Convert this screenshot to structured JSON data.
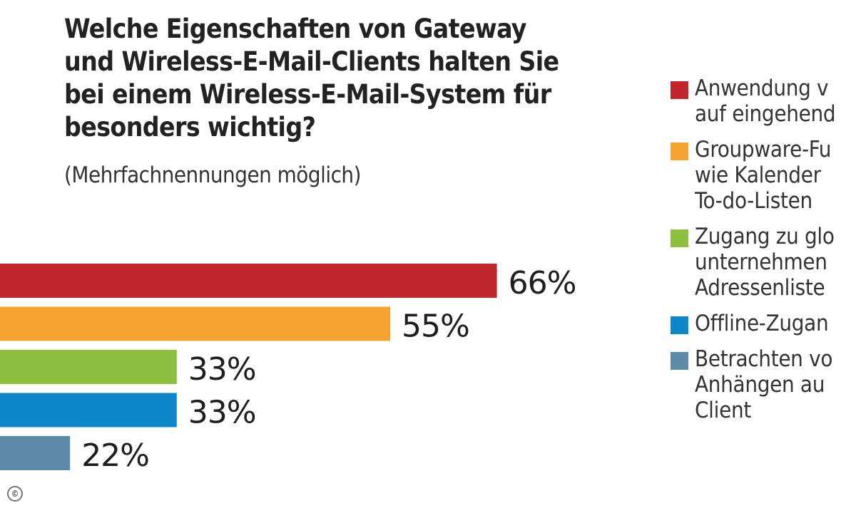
{
  "chart_data": {
    "type": "bar",
    "orientation": "horizontal",
    "title": "Welche Eigenschaften von Gateway und Wireless-E-Mail-Clients halten Sie bei einem Wireless-E-Mail-System für besonders wichtig?",
    "subtitle": "(Mehrfachnennungen möglich)",
    "xlabel": "",
    "ylabel": "",
    "unit": "%",
    "grid": false,
    "legend_position": "right",
    "categories": [
      "Anwendung v… auf eingehend…",
      "Groupware-Fu… wie Kalender … To-do-Listen",
      "Zugang zu glo… unternehmen… Adressenliste…",
      "Offline-Zugan…",
      "Betrachten vo… Anhängen au… Client"
    ],
    "values": [
      66,
      55,
      33,
      33,
      22
    ],
    "value_labels": [
      "66%",
      "55%",
      "33%",
      "33%",
      "22%"
    ],
    "colors": [
      "#c1272d",
      "#f7a330",
      "#8dc03f",
      "#0d87c9",
      "#5b8ba6"
    ]
  },
  "title_lines": [
    "Welche Eigenschaften von Gateway",
    "und Wireless-E-Mail-Clients halten Sie",
    "bei einem Wireless-E-Mail-System für",
    "besonders wichtig?"
  ],
  "subtitle": "(Mehrfachnennungen möglich)",
  "legend": [
    {
      "label": "Anwendung v\nauf eingehend",
      "color": "#c1272d"
    },
    {
      "label": "Groupware-Fu\nwie Kalender \nTo-do-Listen",
      "color": "#f7a330"
    },
    {
      "label": "Zugang zu glo\nunternehmen\nAdressenliste",
      "color": "#8dc03f"
    },
    {
      "label": "Offline-Zugan",
      "color": "#0d87c9"
    },
    {
      "label": "Betrachten vo\nAnhängen au\nClient",
      "color": "#5b8ba6"
    }
  ],
  "copyright_symbol": "©"
}
